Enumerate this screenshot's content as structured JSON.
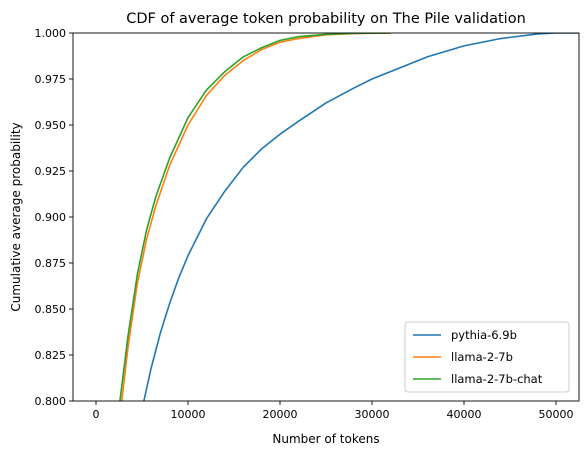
{
  "chart_data": {
    "type": "line",
    "title": "CDF of average token probability on The Pile validation",
    "xlabel": "Number of tokens",
    "ylabel": "Cumulative average probability",
    "xlim": [
      -2500,
      52500
    ],
    "ylim": [
      0.8,
      1.0
    ],
    "x_ticks": [
      0,
      10000,
      20000,
      30000,
      40000,
      50000
    ],
    "x_tick_labels": [
      "0",
      "10000",
      "20000",
      "30000",
      "40000",
      "50000"
    ],
    "y_ticks": [
      0.8,
      0.825,
      0.85,
      0.875,
      0.9,
      0.925,
      0.95,
      0.975,
      1.0
    ],
    "y_tick_labels": [
      "0.800",
      "0.825",
      "0.850",
      "0.875",
      "0.900",
      "0.925",
      "0.950",
      "0.975",
      "1.000"
    ],
    "grid": false,
    "legend_position": "bottom-right",
    "series": [
      {
        "name": "pythia-6.9b",
        "color": "#1f77b4",
        "x": [
          5200,
          6000,
          7000,
          8000,
          9000,
          10000,
          12000,
          14000,
          16000,
          18000,
          20000,
          22000,
          25000,
          28000,
          30000,
          33000,
          36000,
          40000,
          44000,
          48000,
          50000,
          52500
        ],
        "y": [
          0.8,
          0.818,
          0.837,
          0.853,
          0.867,
          0.879,
          0.899,
          0.914,
          0.927,
          0.937,
          0.945,
          0.952,
          0.962,
          0.97,
          0.975,
          0.981,
          0.987,
          0.993,
          0.997,
          0.9995,
          1.0,
          1.0
        ]
      },
      {
        "name": "llama-2-7b",
        "color": "#ff7f0e",
        "x": [
          2800,
          3500,
          4500,
          5500,
          6500,
          8000,
          10000,
          12000,
          14000,
          16000,
          18000,
          20000,
          22000,
          25000,
          28000,
          32000
        ],
        "y": [
          0.8,
          0.83,
          0.864,
          0.888,
          0.906,
          0.928,
          0.95,
          0.966,
          0.977,
          0.985,
          0.991,
          0.995,
          0.997,
          0.999,
          0.9997,
          1.0
        ]
      },
      {
        "name": "llama-2-7b-chat",
        "color": "#2ca02c",
        "x": [
          2600,
          3500,
          4500,
          5500,
          6500,
          8000,
          10000,
          12000,
          14000,
          16000,
          18000,
          20000,
          22000,
          25000,
          28000,
          32000
        ],
        "y": [
          0.8,
          0.836,
          0.869,
          0.893,
          0.911,
          0.932,
          0.954,
          0.969,
          0.979,
          0.987,
          0.992,
          0.996,
          0.998,
          0.9993,
          0.9998,
          1.0
        ]
      }
    ]
  }
}
